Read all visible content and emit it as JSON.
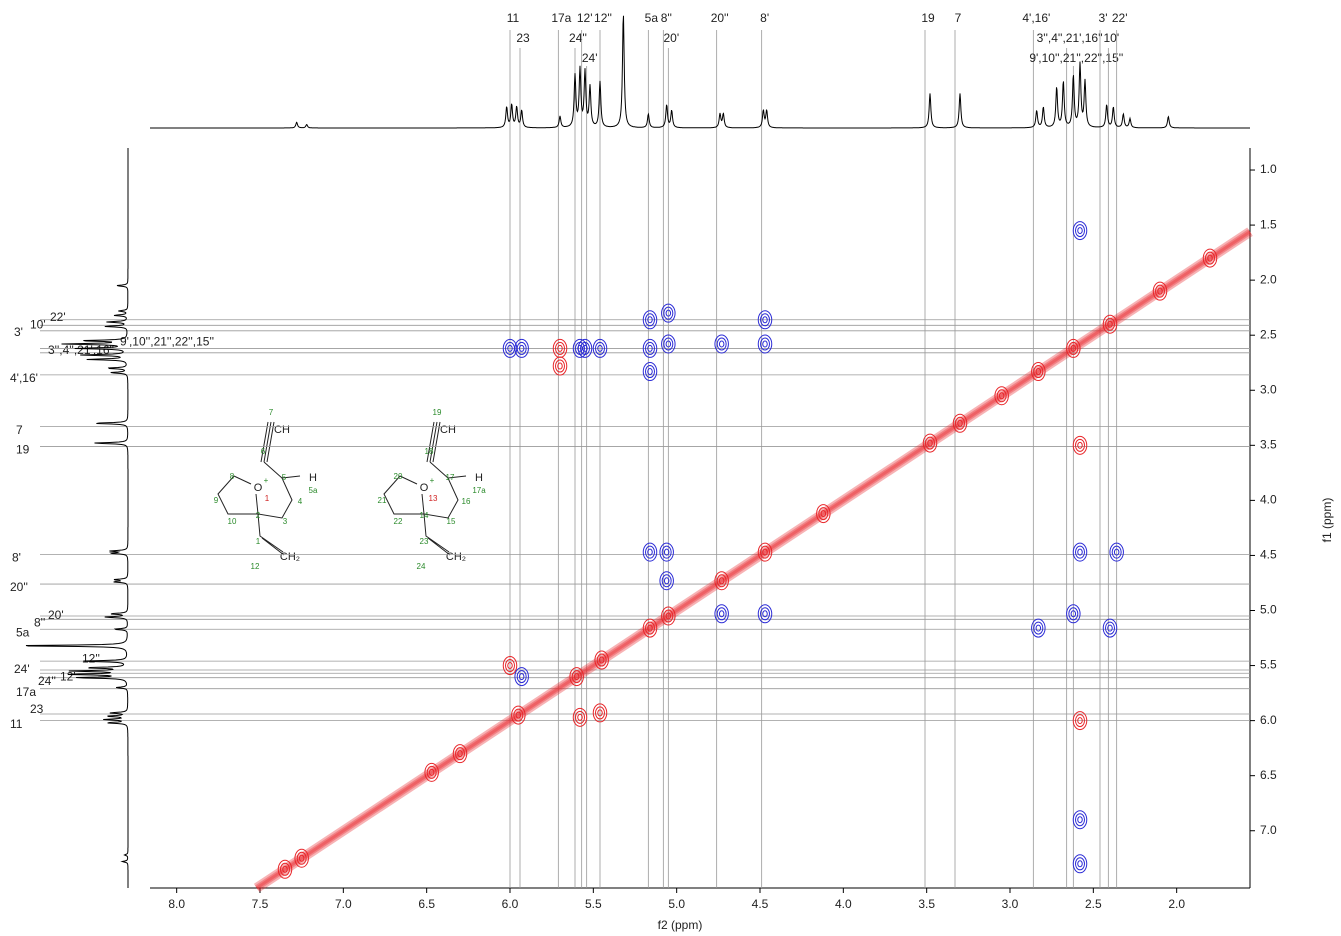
{
  "chart_data": {
    "type": "nmr-2d",
    "xlabel": "f2 (ppm)",
    "ylabel": "f1 (ppm)",
    "xlim": [
      8.16,
      1.56
    ],
    "ylim": [
      0.8,
      7.52
    ],
    "xticks": [
      {
        "value": 8,
        "label": "8.0"
      },
      {
        "value": 7.5,
        "label": "7.5"
      },
      {
        "value": 7,
        "label": "7.0"
      },
      {
        "value": 6.5,
        "label": "6.5"
      },
      {
        "value": 6,
        "label": "6.0"
      },
      {
        "value": 5.5,
        "label": "5.5"
      },
      {
        "value": 5,
        "label": "5.0"
      },
      {
        "value": 4.5,
        "label": "4.5"
      },
      {
        "value": 4,
        "label": "4.0"
      },
      {
        "value": 3.5,
        "label": "3.5"
      },
      {
        "value": 3,
        "label": "3.0"
      },
      {
        "value": 2.5,
        "label": "2.5"
      },
      {
        "value": 2,
        "label": "2.0"
      }
    ],
    "yticks": [
      {
        "value": 1,
        "label": "1.0"
      },
      {
        "value": 1.5,
        "label": "1.5"
      },
      {
        "value": 2,
        "label": "2.0"
      },
      {
        "value": 2.5,
        "label": "2.5"
      },
      {
        "value": 3,
        "label": "3.0"
      },
      {
        "value": 3.5,
        "label": "3.5"
      },
      {
        "value": 4,
        "label": "4.0"
      },
      {
        "value": 4.5,
        "label": "4.5"
      },
      {
        "value": 5,
        "label": "5.0"
      },
      {
        "value": 5.5,
        "label": "5.5"
      },
      {
        "value": 6,
        "label": "6.0"
      },
      {
        "value": 6.5,
        "label": "6.5"
      },
      {
        "value": 7,
        "label": "7.0"
      }
    ],
    "assignments": {
      "labels": [
        "11",
        "23",
        "17a",
        "24''",
        "12'",
        "24'",
        "12''",
        "5a",
        "8''",
        "20'",
        "20''",
        "8'",
        "19",
        "7",
        "4',16'",
        "3'',4'',21',16''",
        "9',10'',21'',22'',15''",
        "3'",
        "10'",
        "22'"
      ],
      "ppm": [
        6.0,
        5.94,
        5.71,
        5.61,
        5.57,
        5.54,
        5.46,
        5.17,
        5.08,
        5.05,
        4.76,
        4.49,
        3.51,
        3.33,
        2.86,
        2.66,
        2.62,
        2.46,
        2.41,
        2.36
      ]
    },
    "spectrum_1d": {
      "ppm": [
        7.28,
        7.22,
        6.02,
        5.99,
        5.96,
        5.93,
        5.7,
        5.61,
        5.58,
        5.55,
        5.52,
        5.46,
        5.32,
        5.17,
        5.06,
        5.03,
        4.74,
        4.72,
        4.48,
        4.46,
        3.48,
        3.3,
        2.84,
        2.8,
        2.72,
        2.68,
        2.62,
        2.58,
        2.55,
        2.42,
        2.38,
        2.32,
        2.28,
        2.05
      ],
      "intensity": [
        5,
        3,
        18,
        20,
        18,
        15,
        10,
        45,
        50,
        48,
        35,
        40,
        100,
        12,
        20,
        15,
        12,
        12,
        15,
        15,
        30,
        30,
        15,
        18,
        35,
        40,
        45,
        55,
        40,
        20,
        18,
        12,
        8,
        10
      ]
    },
    "series": [
      {
        "color": "#e8262a",
        "x": [
          7.35,
          7.25,
          6.47,
          6.3,
          5.95,
          5.6,
          5.45,
          5.16,
          5.05,
          4.73,
          4.47,
          4.12,
          3.48,
          3.3,
          3.05,
          2.83,
          2.62,
          2.4,
          2.1,
          1.8,
          5.7,
          5.7,
          2.58,
          2.58,
          5.46,
          5.58,
          6.0
        ],
        "y": [
          7.35,
          7.25,
          6.47,
          6.3,
          5.95,
          5.6,
          5.45,
          5.16,
          5.05,
          4.73,
          4.47,
          4.12,
          3.48,
          3.3,
          3.05,
          2.83,
          2.62,
          2.4,
          2.1,
          1.8,
          2.62,
          2.78,
          3.5,
          6.0,
          5.93,
          5.97,
          5.5
        ]
      },
      {
        "color": "#2b2bd6",
        "x": [
          6.0,
          5.93,
          5.58,
          5.55,
          5.46,
          5.16,
          5.16,
          5.16,
          5.05,
          5.05,
          4.73,
          4.47,
          4.47,
          5.06,
          5.16,
          5.06,
          4.73,
          4.47,
          2.58,
          2.36,
          2.62,
          2.83,
          2.4,
          2.58,
          2.58,
          2.58,
          5.93
        ],
        "y": [
          2.62,
          2.62,
          2.62,
          2.62,
          2.62,
          2.36,
          2.62,
          2.83,
          2.3,
          2.58,
          2.58,
          2.36,
          2.58,
          4.47,
          4.47,
          4.73,
          5.03,
          5.03,
          4.47,
          4.47,
          5.03,
          5.16,
          5.16,
          1.55,
          6.9,
          7.3,
          5.6
        ]
      }
    ],
    "structures": [
      {
        "atoms": [
          "7",
          "CH",
          "6",
          "8",
          "O",
          "+",
          "5",
          "H",
          "5a",
          "1",
          "9",
          "4",
          "10",
          "2",
          "3",
          "1",
          "CH₂",
          "12"
        ]
      },
      {
        "atoms": [
          "19",
          "CH",
          "18",
          "20",
          "O",
          "+",
          "17",
          "H",
          "17a",
          "13",
          "21",
          "16",
          "22",
          "14",
          "15",
          "23",
          "CH₂",
          "24"
        ]
      }
    ]
  }
}
